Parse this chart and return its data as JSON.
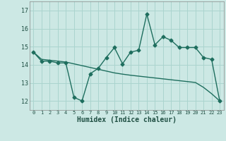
{
  "xlabel": "Humidex (Indice chaleur)",
  "bg_color": "#cce8e4",
  "grid_color": "#aad4ce",
  "line_color": "#1e6e5e",
  "xlim": [
    -0.5,
    23.5
  ],
  "ylim": [
    11.5,
    17.5
  ],
  "xticks": [
    0,
    1,
    2,
    3,
    4,
    5,
    6,
    7,
    8,
    9,
    10,
    11,
    12,
    13,
    14,
    15,
    16,
    17,
    18,
    19,
    20,
    21,
    22,
    23
  ],
  "yticks": [
    12,
    13,
    14,
    15,
    16,
    17
  ],
  "series1_x": [
    0,
    1,
    2,
    3,
    4,
    5,
    6,
    7,
    8,
    9,
    10,
    11,
    12,
    13,
    14,
    15,
    16,
    17,
    18,
    19,
    20,
    21,
    22,
    23
  ],
  "series1_y": [
    14.7,
    14.2,
    14.2,
    14.1,
    14.1,
    12.2,
    12.0,
    13.5,
    13.8,
    14.4,
    14.95,
    14.05,
    14.7,
    14.8,
    16.8,
    15.1,
    15.55,
    15.35,
    14.95,
    14.95,
    14.95,
    14.4,
    14.3,
    12.0
  ],
  "series2_x": [
    0,
    1,
    2,
    3,
    4,
    5,
    6,
    7,
    8,
    9,
    10,
    11,
    12,
    13,
    14,
    15,
    16,
    17,
    18,
    19,
    20,
    21,
    22,
    23
  ],
  "series2_y": [
    14.7,
    14.3,
    14.25,
    14.2,
    14.15,
    14.05,
    13.95,
    13.85,
    13.75,
    13.65,
    13.55,
    13.48,
    13.42,
    13.37,
    13.32,
    13.27,
    13.22,
    13.17,
    13.12,
    13.07,
    13.02,
    12.75,
    12.4,
    12.0
  ]
}
